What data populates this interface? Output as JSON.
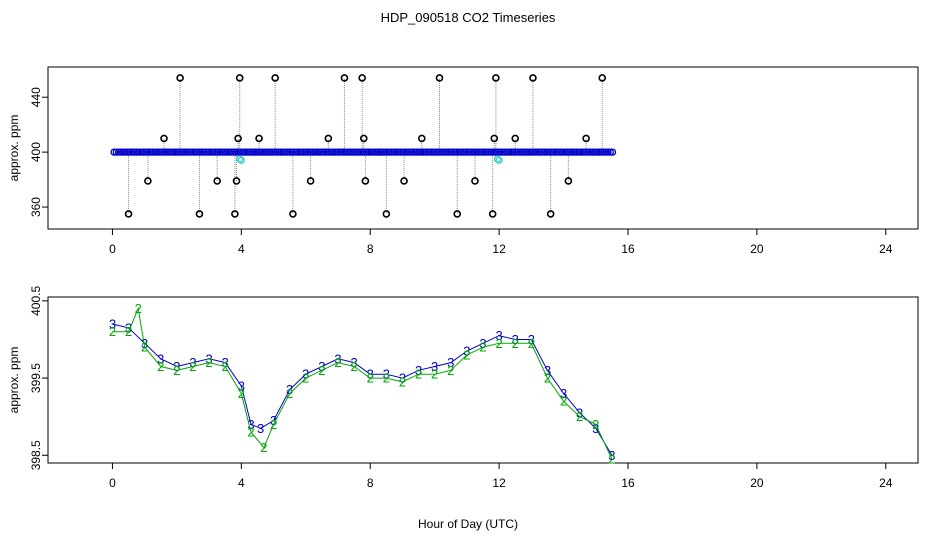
{
  "figure": {
    "title": "HDP_090518  CO2 Timeseries",
    "xlabel": "Hour of Day (UTC)"
  },
  "chart_data": [
    {
      "type": "scatter",
      "title": "HDP_090518  CO2 Timeseries",
      "xlabel": "",
      "ylabel": "approx. ppm",
      "xlim": [
        -2,
        25
      ],
      "ylim": [
        344,
        462
      ],
      "x_ticks": [
        0,
        4,
        8,
        12,
        16,
        20,
        24
      ],
      "y_ticks": [
        360,
        400,
        440
      ],
      "legend": "none",
      "grid": false,
      "colors": {
        "main": "#0000cc",
        "highlight": "#33cccc",
        "spikes": "#000000",
        "connector": "#888888"
      },
      "series": [
        {
          "marker": "open-circle",
          "color": "#0000cc",
          "x_start": 0.05,
          "x_end": 15.55,
          "step": 0.07,
          "baseline_y": 400
        },
        {
          "marker": "open-circle",
          "color": "#33cccc",
          "x": [
            3.95,
            4.0,
            11.95,
            12.0
          ],
          "y": [
            395,
            394,
            395,
            394
          ]
        },
        {
          "marker": "open-circle",
          "color": "#000000",
          "x": [
            0.5,
            1.1,
            1.6,
            2.1,
            2.7,
            3.25,
            3.8,
            3.85,
            3.9,
            3.95,
            4.55,
            5.05,
            5.6,
            6.15,
            6.7,
            7.2,
            7.75,
            7.8,
            7.85,
            8.5,
            9.05,
            9.6,
            10.15,
            10.7,
            11.25,
            11.8,
            11.85,
            11.9,
            12.5,
            13.05,
            13.6,
            14.15,
            14.7,
            15.2
          ],
          "y": [
            355,
            379,
            410,
            454,
            355,
            379,
            355,
            379,
            410,
            454,
            410,
            454,
            355,
            379,
            410,
            454,
            454,
            410,
            379,
            355,
            379,
            410,
            454,
            355,
            379,
            355,
            410,
            454,
            410,
            454,
            355,
            379,
            410,
            454
          ]
        }
      ]
    },
    {
      "type": "scatter",
      "title": "",
      "xlabel": "Hour of Day (UTC)",
      "ylabel": "approx. ppm",
      "xlim": [
        -2,
        25
      ],
      "ylim": [
        398.4,
        400.55
      ],
      "x_ticks": [
        0,
        4,
        8,
        12,
        16,
        20,
        24
      ],
      "y_ticks": [
        398.5,
        399.5,
        400.5
      ],
      "legend": "none",
      "grid": false,
      "colors": {
        "series_3": "#0000cc",
        "series_2": "#00aa00"
      },
      "series": [
        {
          "marker": "3",
          "color": "#0000cc",
          "x": [
            0.0,
            0.5,
            1.0,
            1.5,
            2.0,
            2.5,
            3.0,
            3.5,
            4.0,
            4.3,
            4.6,
            5.0,
            5.5,
            6.0,
            6.5,
            7.0,
            7.5,
            8.0,
            8.5,
            9.0,
            9.5,
            10.0,
            10.5,
            11.0,
            11.5,
            12.0,
            12.5,
            13.0,
            13.5,
            14.0,
            14.5,
            15.0,
            15.5
          ],
          "y": [
            400.2,
            400.15,
            399.95,
            399.75,
            399.65,
            399.7,
            399.75,
            399.7,
            399.4,
            398.9,
            398.85,
            398.95,
            399.35,
            399.55,
            399.65,
            399.75,
            399.7,
            399.55,
            399.55,
            399.5,
            399.6,
            399.65,
            399.7,
            399.85,
            399.95,
            400.05,
            400.0,
            400.0,
            399.6,
            399.3,
            399.05,
            398.85,
            398.5
          ]
        },
        {
          "marker": "2",
          "color": "#00aa00",
          "x": [
            0.0,
            0.5,
            0.8,
            1.0,
            1.5,
            2.0,
            2.5,
            3.0,
            3.5,
            4.0,
            4.3,
            4.7,
            5.0,
            5.5,
            6.0,
            6.5,
            7.0,
            7.5,
            8.0,
            8.5,
            9.0,
            9.5,
            10.0,
            10.5,
            11.0,
            11.5,
            12.0,
            12.5,
            13.0,
            13.5,
            14.0,
            14.5,
            15.0,
            15.5
          ],
          "y": [
            400.1,
            400.1,
            400.4,
            399.9,
            399.65,
            399.6,
            399.65,
            399.7,
            399.65,
            399.3,
            398.8,
            398.6,
            398.9,
            399.3,
            399.5,
            399.6,
            399.7,
            399.65,
            399.5,
            399.5,
            399.45,
            399.55,
            399.55,
            399.6,
            399.8,
            399.9,
            399.95,
            399.95,
            399.95,
            399.5,
            399.2,
            399.0,
            398.9,
            398.45
          ]
        }
      ]
    }
  ]
}
